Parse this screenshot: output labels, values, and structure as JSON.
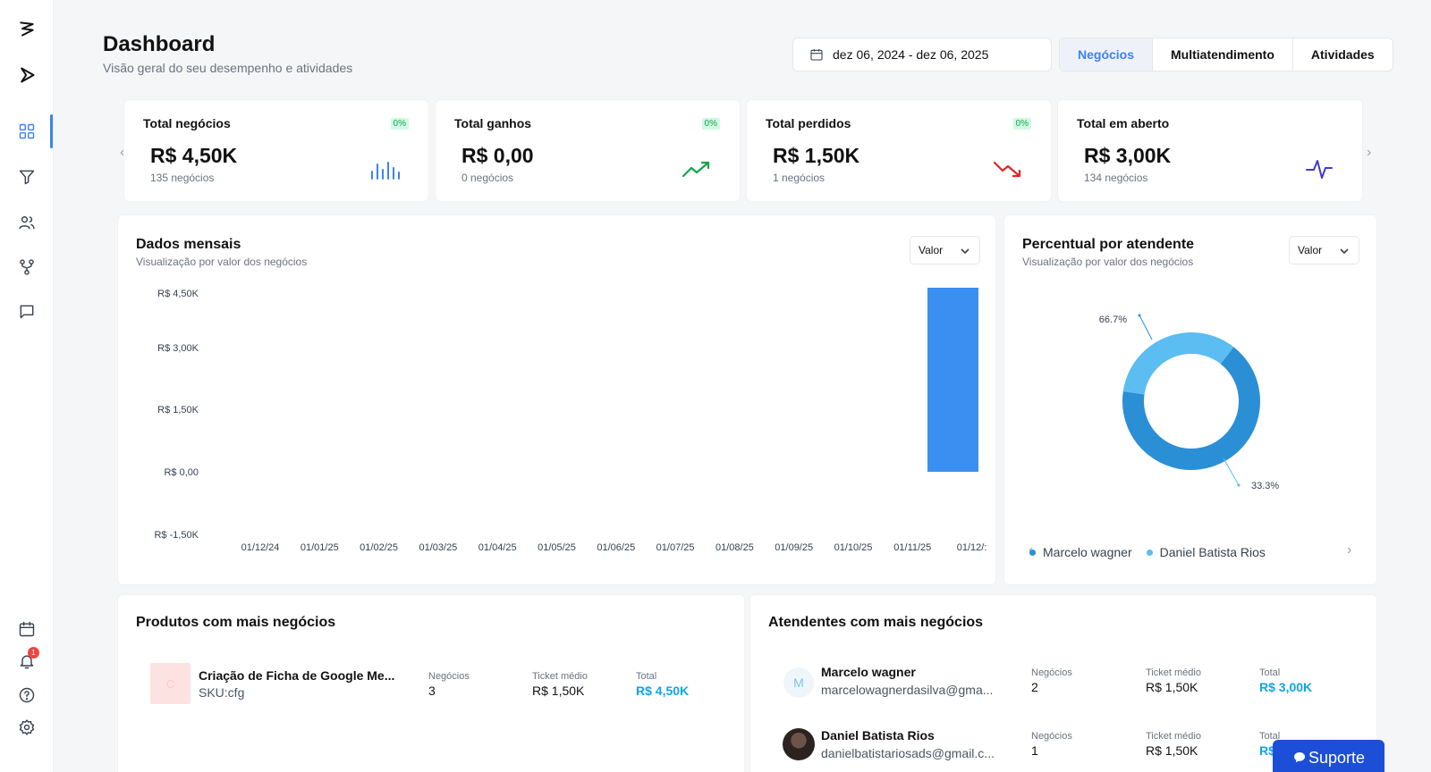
{
  "header": {
    "title": "Dashboard",
    "subtitle": "Visão geral do seu desempenho e atividades",
    "date_range": "dez 06, 2024 - dez 06, 2025",
    "tabs": [
      {
        "label": "Negócios",
        "active": true
      },
      {
        "label": "Multiatendimento",
        "active": false
      },
      {
        "label": "Atividades",
        "active": false
      }
    ]
  },
  "kpis": [
    {
      "title": "Total negócios",
      "badge": "0%",
      "value": "R$ 4,50K",
      "sub": "135 negócios",
      "icon": "bar-chart-icon"
    },
    {
      "title": "Total ganhos",
      "badge": "0%",
      "value": "R$ 0,00",
      "sub": "0 negócios",
      "icon": "trending-up-icon"
    },
    {
      "title": "Total perdidos",
      "badge": "0%",
      "value": "R$ 1,50K",
      "sub": "1 negócios",
      "icon": "trending-down-icon"
    },
    {
      "title": "Total em aberto",
      "badge": "",
      "value": "R$ 3,00K",
      "sub": "134 negócios",
      "icon": "activity-icon"
    }
  ],
  "monthly": {
    "title": "Dados mensais",
    "subtitle": "Visualização por valor dos negócios",
    "select": "Valor"
  },
  "attendant_pct": {
    "title": "Percentual por atendente",
    "subtitle": "Visualização por valor dos negócios",
    "select": "Valor"
  },
  "chart_data": [
    {
      "type": "bar",
      "title": "Dados mensais",
      "categories": [
        "01/12/24",
        "01/01/25",
        "01/02/25",
        "01/03/25",
        "01/04/25",
        "01/05/25",
        "01/06/25",
        "01/07/25",
        "01/08/25",
        "01/09/25",
        "01/10/25",
        "01/11/25",
        "01/12/:"
      ],
      "values": [
        0,
        0,
        0,
        0,
        0,
        0,
        0,
        0,
        0,
        0,
        0,
        0,
        4500
      ],
      "y_ticks": [
        "R$ 4,50K",
        "R$ 3,00K",
        "R$ 1,50K",
        "R$ 0,00",
        "R$ -1,50K"
      ],
      "ylim": [
        -1500,
        4500
      ],
      "color": "#3b8ff0"
    },
    {
      "type": "pie",
      "title": "Percentual por atendente",
      "labels": [
        "Marcelo wagner",
        "Daniel Batista Rios"
      ],
      "values": [
        66.7,
        33.3
      ],
      "slice_labels": [
        "66.7%",
        "33.3%"
      ],
      "colors": [
        "#2b8fd6",
        "#5bbdf2"
      ]
    }
  ],
  "products": {
    "title": "Produtos com mais negócios",
    "items": [
      {
        "thumb": "C",
        "name": "Criação de Ficha de Google Me...",
        "sku": "SKU:cfg",
        "deals_label": "Negócios",
        "deals": "3",
        "ticket_label": "Ticket médio",
        "ticket": "R$ 1,50K",
        "total_label": "Total",
        "total": "R$ 4,50K"
      }
    ]
  },
  "attendants": {
    "title": "Atendentes com mais negócios",
    "items": [
      {
        "avatar": "M",
        "name": "Marcelo wagner",
        "email": "marcelowagnerdasilva@gma...",
        "deals_label": "Negócios",
        "deals": "2",
        "ticket_label": "Ticket médio",
        "ticket": "R$ 1,50K",
        "total_label": "Total",
        "total": "R$ 3,00K"
      },
      {
        "avatar": "",
        "name": "Daniel Batista Rios",
        "email": "danielbatistariosads@gmail.c...",
        "deals_label": "Negócios",
        "deals": "1",
        "ticket_label": "Ticket médio",
        "ticket": "R$ 1,50K",
        "total_label": "Total",
        "total": "R$"
      }
    ]
  },
  "notifications": {
    "count": "1"
  },
  "support": {
    "label": "Suporte"
  }
}
